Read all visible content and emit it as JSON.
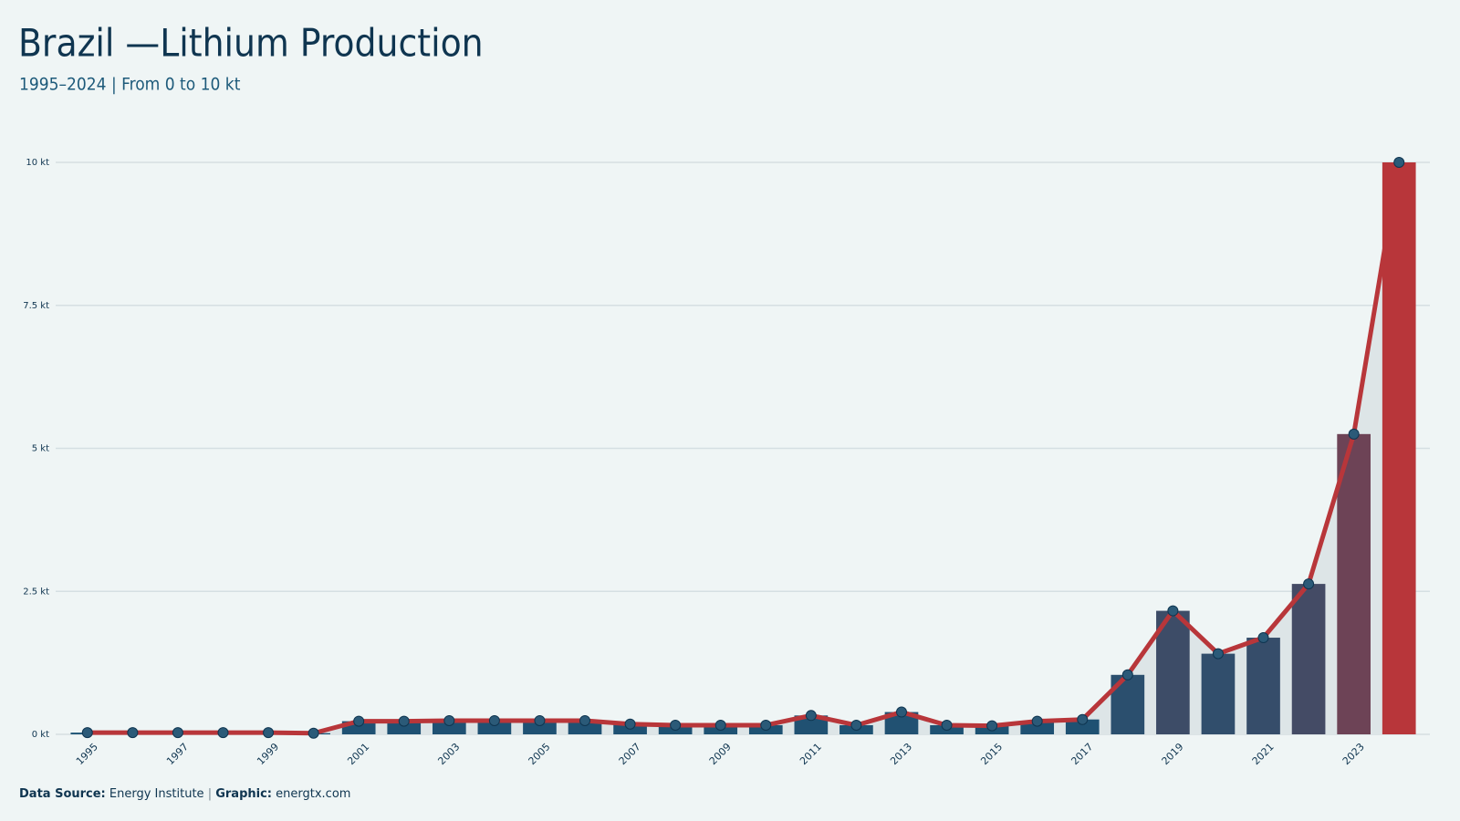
{
  "chart_data": {
    "type": "bar",
    "title": "Brazil —Lithium Production",
    "subtitle": "1995–2024 | From 0 to 10 kt",
    "categories": [
      "1995",
      null,
      "1997",
      null,
      "1999",
      null,
      "2001",
      null,
      "2003",
      null,
      "2005",
      null,
      "2007",
      null,
      "2009",
      null,
      "2011",
      null,
      "2013",
      null,
      "2015",
      null,
      "2017",
      null,
      "2019",
      null,
      "2021",
      null,
      "2023",
      null
    ],
    "values": [
      0.03,
      0.03,
      0.03,
      0.03,
      0.03,
      0.02,
      0.23,
      0.23,
      0.24,
      0.24,
      0.24,
      0.24,
      0.18,
      0.16,
      0.16,
      0.16,
      0.33,
      0.16,
      0.39,
      0.16,
      0.15,
      0.23,
      0.26,
      1.04,
      2.16,
      1.41,
      1.69,
      2.63,
      5.25,
      10.0
    ],
    "ylim": [
      0,
      10
    ],
    "yticks": [
      {
        "value": 0,
        "label": "0 kt"
      },
      {
        "value": 2.5,
        "label": "2.5 kt"
      },
      {
        "value": 5,
        "label": "5 kt"
      },
      {
        "value": 7.5,
        "label": "7.5 kt"
      },
      {
        "value": 10,
        "label": "10 kt"
      }
    ],
    "grid": true,
    "color_low": "#1b5274",
    "color_high": "#b8363a",
    "line_color": "#b8363a",
    "marker_color": "#2b5a78",
    "area_color": "#dde5e7",
    "source_label": "Data Source:",
    "source": "Energy Institute",
    "separator": "|",
    "credit_label": "Graphic:",
    "credit": "energtx.com"
  }
}
